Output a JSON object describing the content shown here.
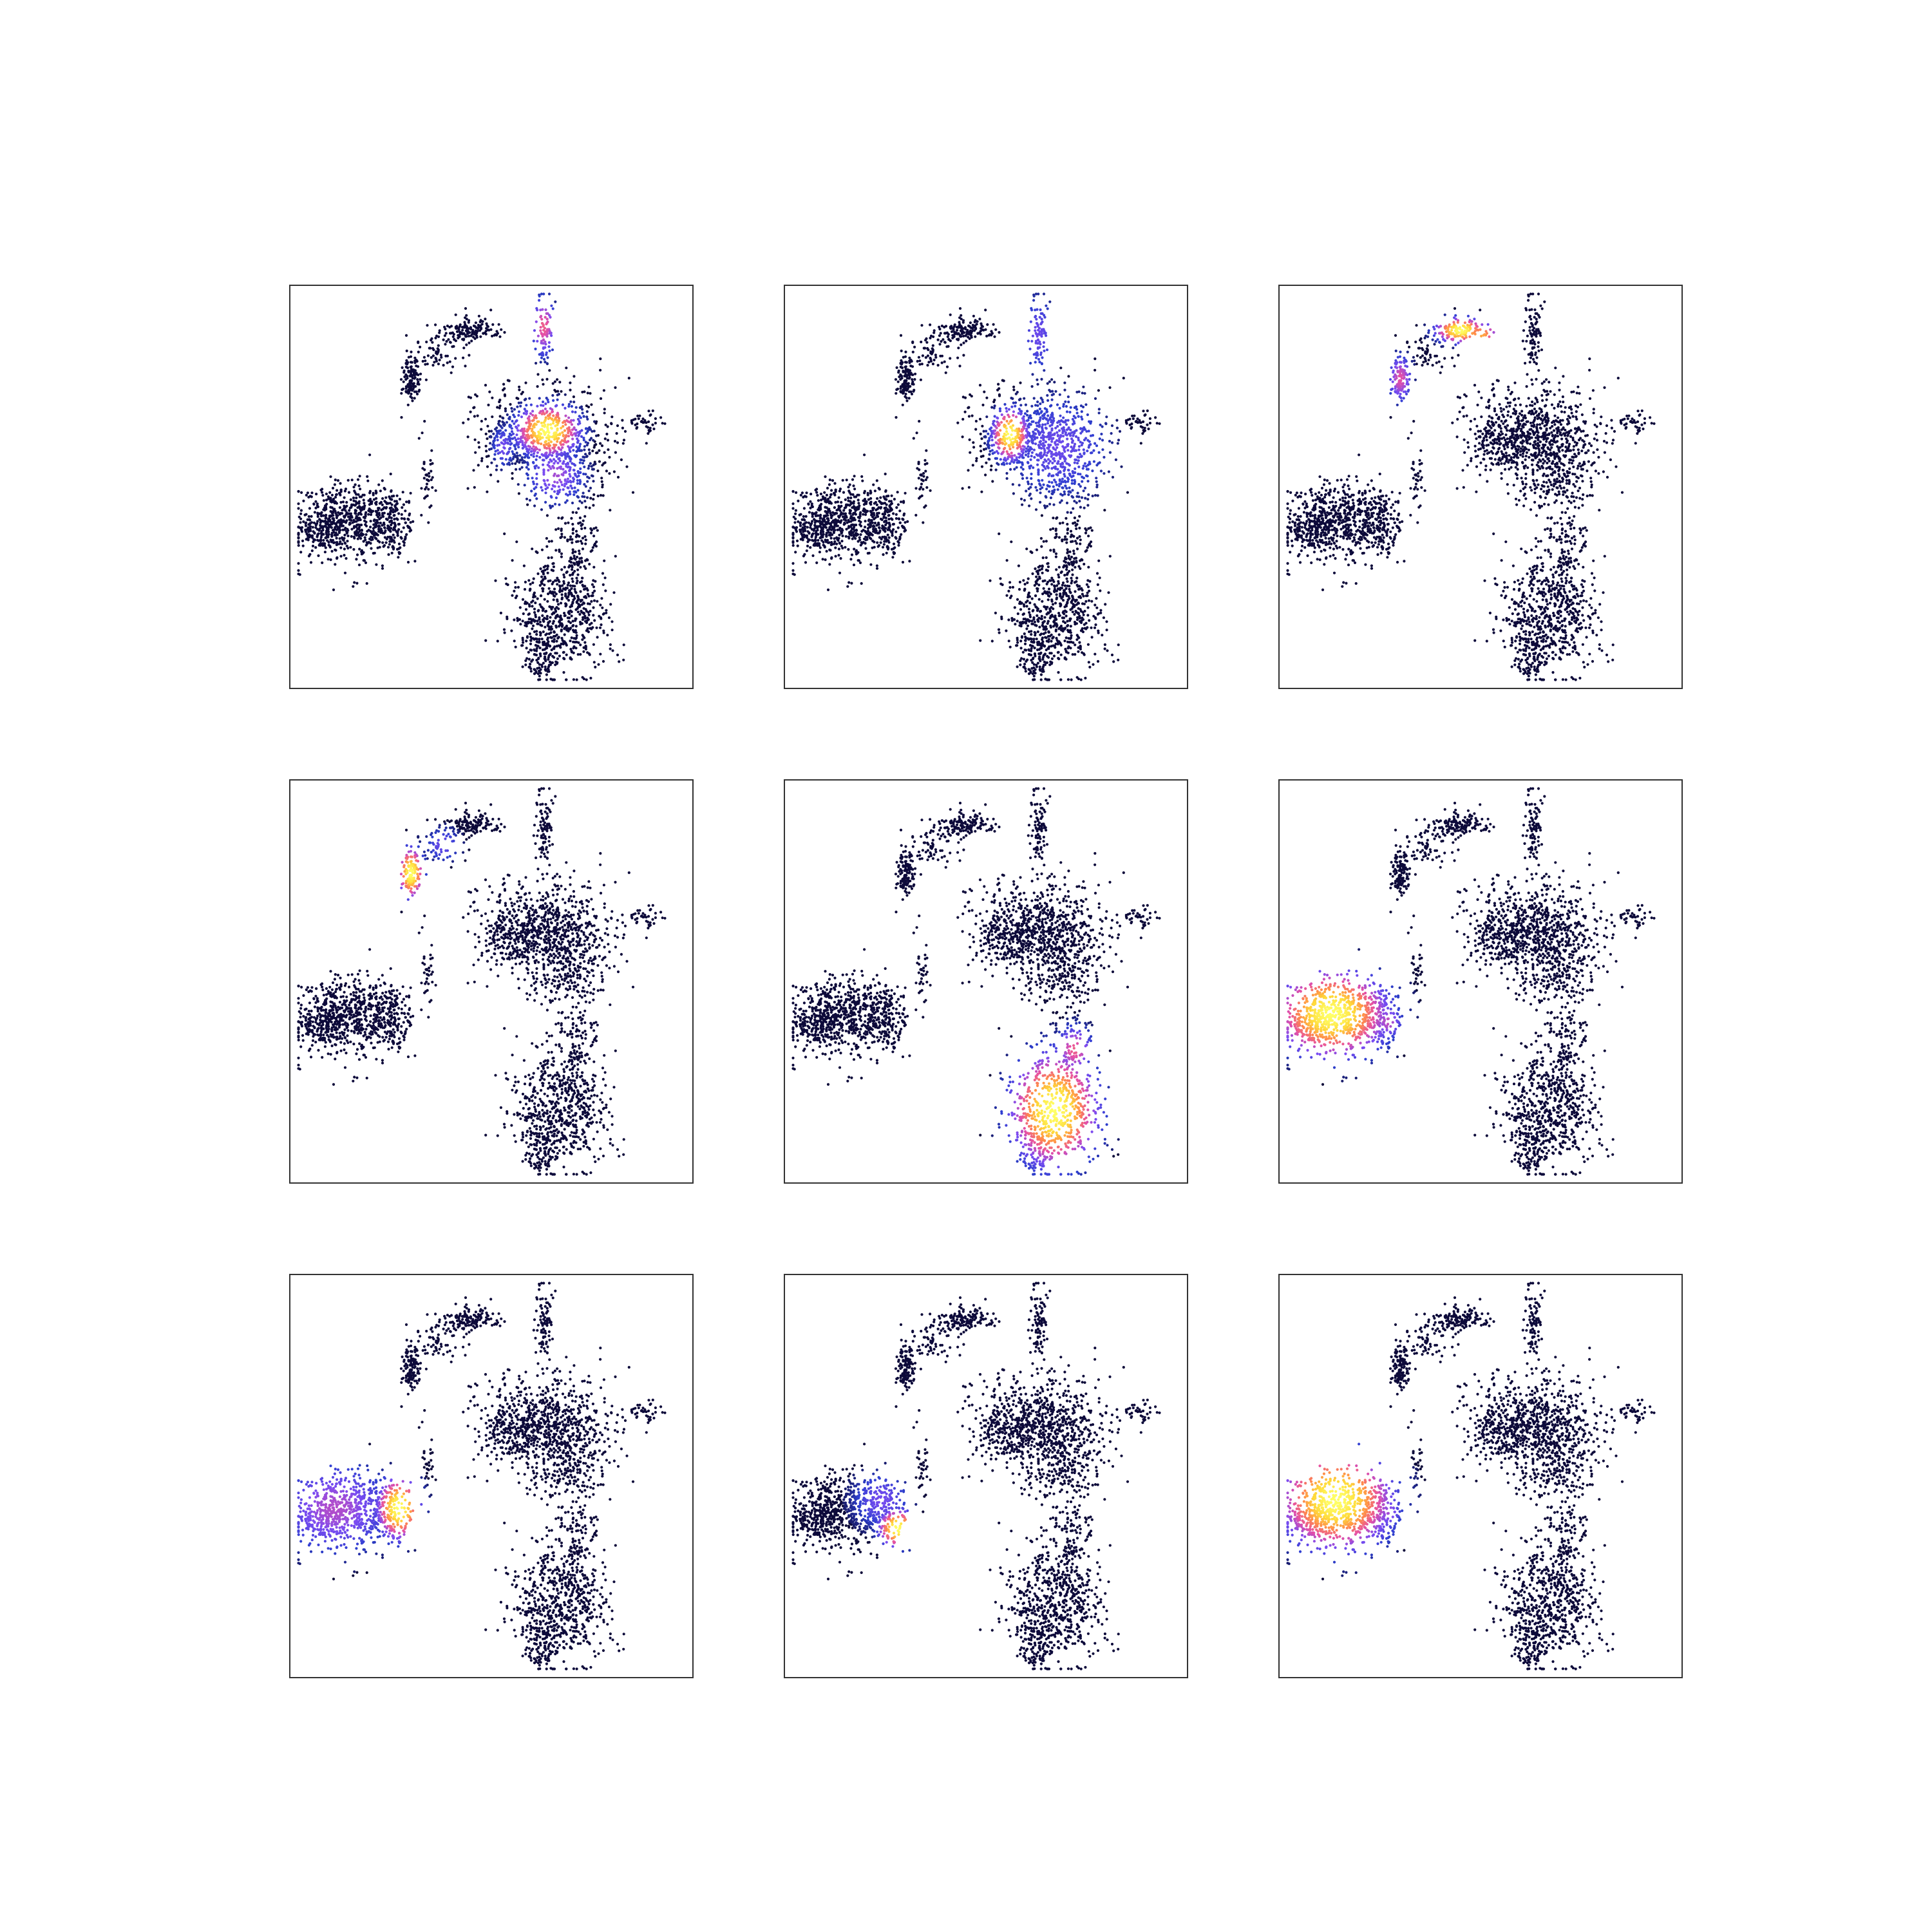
{
  "palette": {
    "background": "#ffffff",
    "frame": "#333333",
    "low": "#0d0a3a",
    "ramp": [
      "#0d0a3a",
      "#2e3fd0",
      "#7a4cf2",
      "#e54fa6",
      "#ff8a4a",
      "#ffd93a",
      "#ffff66"
    ]
  },
  "chart_data": [
    {
      "type": "scatter",
      "panel": "row1-col1",
      "grid": false,
      "title": "",
      "xlabel": "",
      "ylabel": "",
      "highlights": [
        {
          "region": "right-upper",
          "cx": 0.64,
          "cy": 0.64,
          "sx": 0.05,
          "sy": 0.04,
          "peak": 1.0
        },
        {
          "region": "right-upper-west",
          "cx": 0.53,
          "cy": 0.6,
          "sx": 0.02,
          "sy": 0.035,
          "peak": 0.32
        },
        {
          "region": "right-upper-south",
          "cx": 0.66,
          "cy": 0.53,
          "sx": 0.05,
          "sy": 0.05,
          "peak": 0.4
        },
        {
          "region": "top-stem",
          "cx": 0.63,
          "cy": 0.9,
          "sx": 0.02,
          "sy": 0.05,
          "peak": 0.55
        }
      ]
    },
    {
      "type": "scatter",
      "panel": "row1-col2",
      "grid": false,
      "title": "",
      "xlabel": "",
      "ylabel": "",
      "highlights": [
        {
          "region": "right-upper-west",
          "cx": 0.56,
          "cy": 0.63,
          "sx": 0.028,
          "sy": 0.04,
          "peak": 1.0
        },
        {
          "region": "right-upper",
          "cx": 0.68,
          "cy": 0.6,
          "sx": 0.09,
          "sy": 0.09,
          "peak": 0.3
        },
        {
          "region": "top-stem",
          "cx": 0.63,
          "cy": 0.88,
          "sx": 0.03,
          "sy": 0.07,
          "peak": 0.3
        }
      ]
    },
    {
      "type": "scatter",
      "panel": "row1-col3",
      "grid": false,
      "title": "",
      "xlabel": "",
      "ylabel": "",
      "highlights": [
        {
          "region": "top-ridge",
          "cx": 0.45,
          "cy": 0.89,
          "sx": 0.04,
          "sy": 0.02,
          "peak": 1.0
        },
        {
          "region": "upper-left-blob",
          "cx": 0.3,
          "cy": 0.77,
          "sx": 0.02,
          "sy": 0.04,
          "peak": 0.5
        },
        {
          "region": "ridge-mid",
          "cx": 0.5,
          "cy": 0.88,
          "sx": 0.03,
          "sy": 0.02,
          "peak": 0.75
        }
      ]
    },
    {
      "type": "scatter",
      "panel": "row2-col1",
      "grid": false,
      "title": "",
      "xlabel": "",
      "ylabel": "",
      "highlights": [
        {
          "region": "upper-left-blob",
          "cx": 0.3,
          "cy": 0.77,
          "sx": 0.02,
          "sy": 0.04,
          "peak": 1.0
        },
        {
          "region": "ridge-west",
          "cx": 0.38,
          "cy": 0.84,
          "sx": 0.03,
          "sy": 0.03,
          "peak": 0.3
        }
      ]
    },
    {
      "type": "scatter",
      "panel": "row2-col2",
      "grid": false,
      "title": "",
      "xlabel": "",
      "ylabel": "",
      "highlights": [
        {
          "region": "bottom-blob",
          "cx": 0.67,
          "cy": 0.18,
          "sx": 0.07,
          "sy": 0.09,
          "peak": 1.0
        },
        {
          "region": "neck",
          "cx": 0.72,
          "cy": 0.33,
          "sx": 0.03,
          "sy": 0.04,
          "peak": 0.55
        }
      ]
    },
    {
      "type": "scatter",
      "panel": "row2-col3",
      "grid": false,
      "title": "",
      "xlabel": "",
      "ylabel": "",
      "highlights": [
        {
          "region": "left-blob",
          "cx": 0.13,
          "cy": 0.42,
          "sx": 0.09,
          "sy": 0.07,
          "peak": 1.0
        },
        {
          "region": "left-blob-east",
          "cx": 0.27,
          "cy": 0.4,
          "sx": 0.025,
          "sy": 0.03,
          "peak": 0.45
        }
      ]
    },
    {
      "type": "scatter",
      "panel": "row3-col1",
      "grid": false,
      "title": "",
      "xlabel": "",
      "ylabel": "",
      "highlights": [
        {
          "region": "left-blob-east",
          "cx": 0.27,
          "cy": 0.42,
          "sx": 0.035,
          "sy": 0.05,
          "peak": 1.0
        },
        {
          "region": "left-blob",
          "cx": 0.11,
          "cy": 0.42,
          "sx": 0.1,
          "sy": 0.08,
          "peak": 0.42
        }
      ]
    },
    {
      "type": "scatter",
      "panel": "row3-col2",
      "grid": false,
      "title": "",
      "xlabel": "",
      "ylabel": "",
      "highlights": [
        {
          "region": "left-blob-southeast",
          "cx": 0.28,
          "cy": 0.37,
          "sx": 0.03,
          "sy": 0.03,
          "peak": 1.0
        },
        {
          "region": "left-blob-east",
          "cx": 0.24,
          "cy": 0.44,
          "sx": 0.05,
          "sy": 0.05,
          "peak": 0.32
        }
      ]
    },
    {
      "type": "scatter",
      "panel": "row3-col3",
      "grid": false,
      "title": "",
      "xlabel": "",
      "ylabel": "",
      "highlights": [
        {
          "region": "left-blob",
          "cx": 0.14,
          "cy": 0.44,
          "sx": 0.09,
          "sy": 0.08,
          "peak": 1.0
        },
        {
          "region": "left-blob-east",
          "cx": 0.27,
          "cy": 0.41,
          "sx": 0.025,
          "sy": 0.03,
          "peak": 0.4
        }
      ]
    }
  ]
}
